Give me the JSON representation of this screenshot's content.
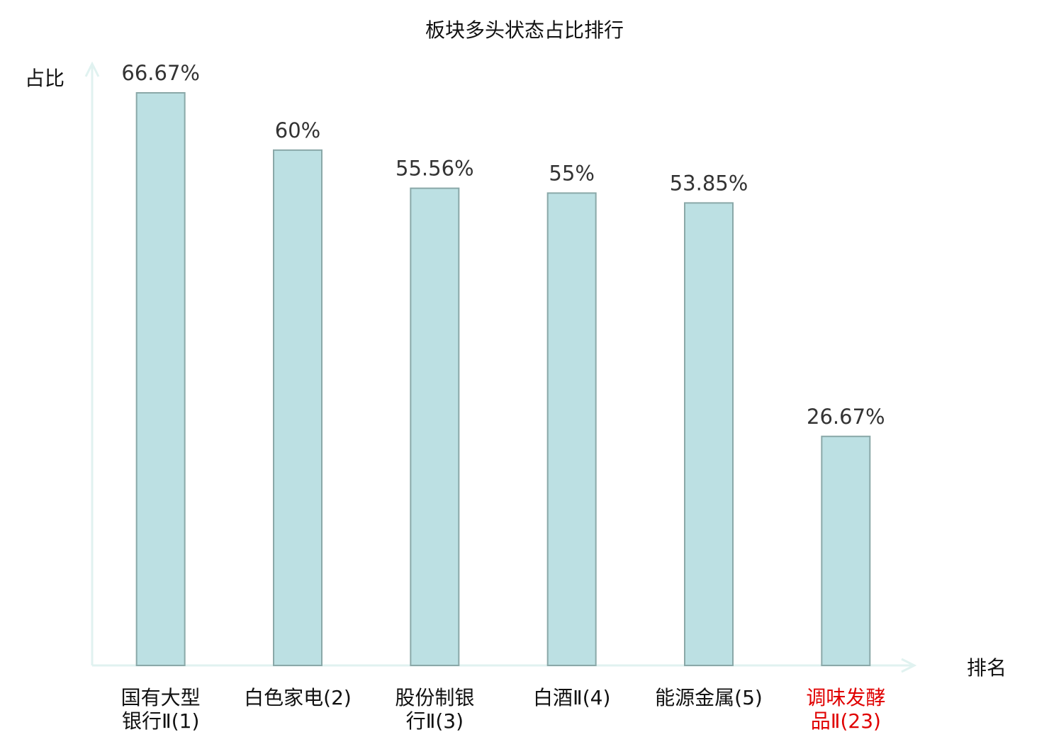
{
  "chart_data": {
    "type": "bar",
    "title": "板块多头状态占比排行",
    "ylabel": "占比",
    "xlabel": "排名",
    "categories": [
      [
        "国有大型",
        "银行Ⅱ(1)"
      ],
      [
        "白色家电(2)"
      ],
      [
        "股份制银",
        "行Ⅱ(3)"
      ],
      [
        "白酒Ⅱ(4)"
      ],
      [
        "能源金属(5)"
      ],
      [
        "调味发酵",
        "品Ⅱ(23)"
      ]
    ],
    "values": [
      66.67,
      60,
      55.56,
      55,
      53.85,
      26.67
    ],
    "data_labels": [
      "66.67%",
      "60%",
      "55.56%",
      "55%",
      "53.85%",
      "26.67%"
    ],
    "highlight_index": 5,
    "ylim": [
      0,
      66.67
    ],
    "grid": false,
    "legend": "none",
    "colors": {
      "bar_fill": "#bce0e3",
      "bar_stroke": "#8aa8a8",
      "axis": "#e0f2f0",
      "label_text": "#111111",
      "data_label_text": "#333333",
      "highlight_text": "#e00000"
    }
  }
}
